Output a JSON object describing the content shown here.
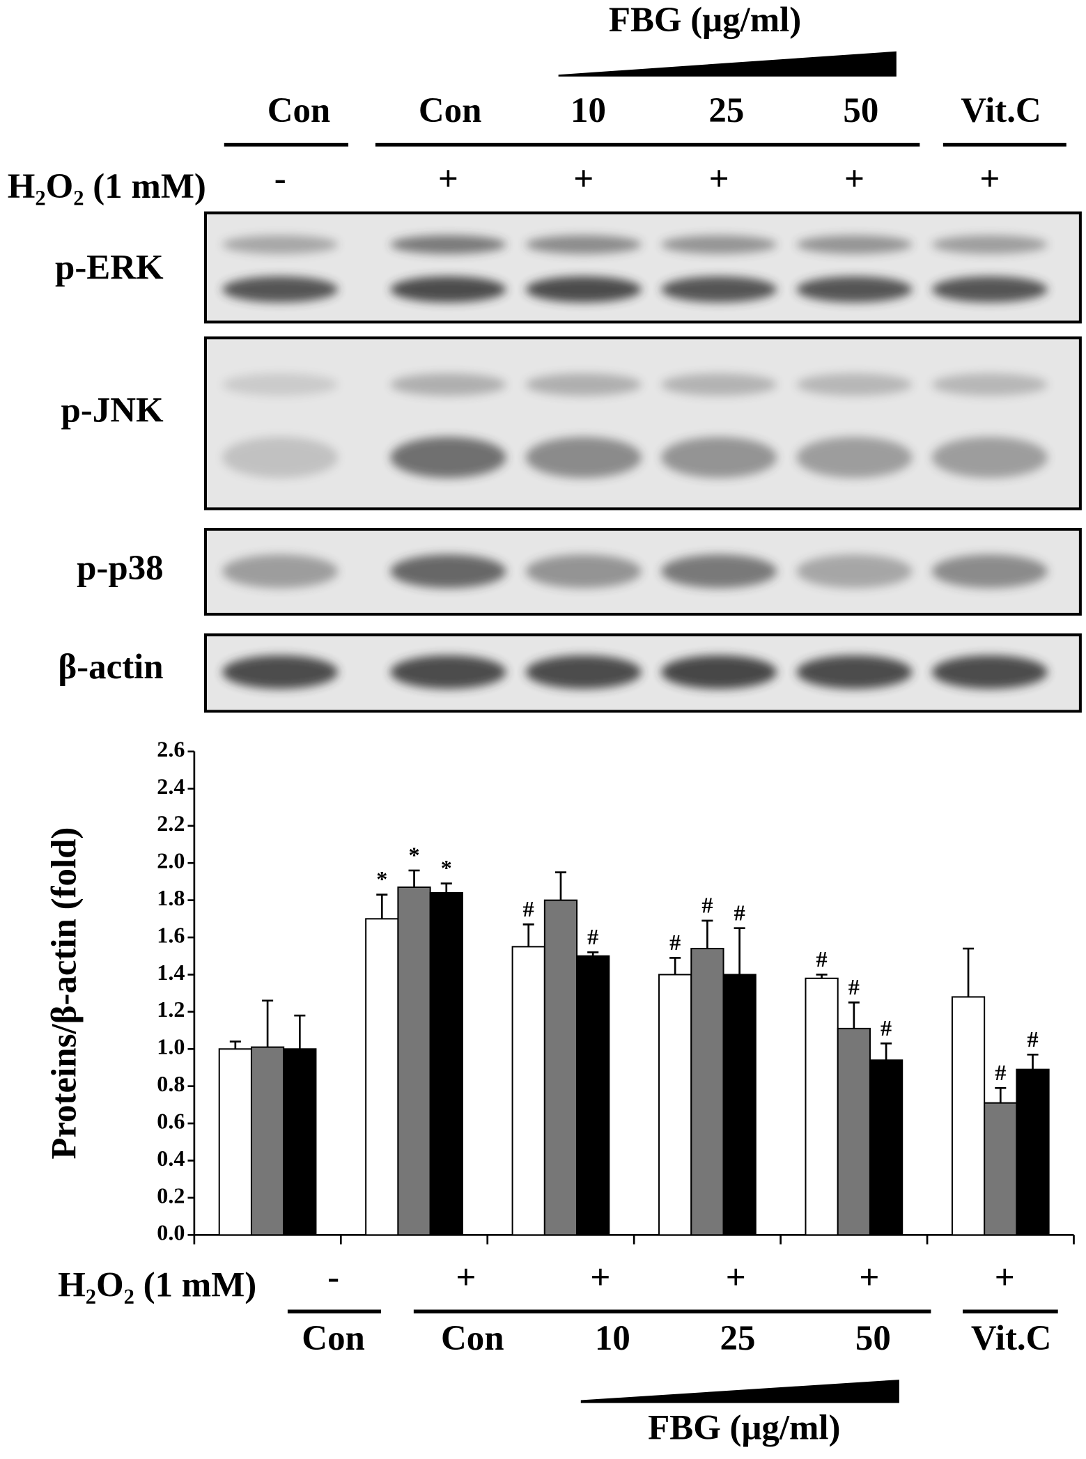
{
  "blot": {
    "fbg_label": "FBG (μg/ml)",
    "lanes": [
      "Con",
      "Con",
      "10",
      "25",
      "50",
      "Vit.C"
    ],
    "h2o2_label": "H₂O₂ (1 mM)",
    "h2o2": [
      "-",
      "+",
      "+",
      "+",
      "+",
      "+"
    ],
    "proteins": [
      "p-ERK",
      "p-JNK",
      "p-p38",
      "β-actin"
    ]
  },
  "chart_data": {
    "type": "bar",
    "y_label": "Proteins/β-actin (fold)",
    "categories": [
      "Con",
      "Con",
      "10",
      "25",
      "50",
      "Vit.C"
    ],
    "h2o2_label": "H₂O₂ (1 mM)",
    "h2o2": [
      "-",
      "+",
      "+",
      "+",
      "+",
      "+"
    ],
    "fbg_label": "FBG (μg/ml)",
    "series": [
      {
        "color": "#ffffff",
        "values": [
          1.0,
          1.7,
          1.55,
          1.4,
          1.38,
          1.28
        ],
        "errors": [
          0.04,
          0.13,
          0.12,
          0.09,
          0.02,
          0.26
        ],
        "markers": [
          null,
          "*",
          "#",
          "#",
          "#",
          null
        ]
      },
      {
        "color": "#777777",
        "values": [
          1.01,
          1.87,
          1.8,
          1.54,
          1.11,
          0.71
        ],
        "errors": [
          0.25,
          0.09,
          0.15,
          0.15,
          0.14,
          0.08
        ],
        "markers": [
          null,
          "*",
          null,
          "#",
          "#",
          "#"
        ]
      },
      {
        "color": "#000000",
        "values": [
          1.0,
          1.84,
          1.5,
          1.4,
          0.94,
          0.89
        ],
        "errors": [
          0.18,
          0.05,
          0.02,
          0.25,
          0.09,
          0.08
        ],
        "markers": [
          null,
          "*",
          "#",
          "#",
          "#",
          "#"
        ]
      }
    ],
    "ylim": [
      0,
      2.6
    ],
    "yticks": [
      {
        "value": 0,
        "label": "0.0"
      },
      {
        "value": 0.2,
        "label": "0.2"
      },
      {
        "value": 0.4,
        "label": "0.4"
      },
      {
        "value": 0.6,
        "label": "0.6"
      },
      {
        "value": 0.8,
        "label": "0.8"
      },
      {
        "value": 1,
        "label": "1.0"
      },
      {
        "value": 1.2,
        "label": "1.2"
      },
      {
        "value": 1.4,
        "label": "1.4"
      },
      {
        "value": 1.6,
        "label": "1.6"
      },
      {
        "value": 1.8,
        "label": "1.8"
      },
      {
        "value": 2,
        "label": "2.0"
      },
      {
        "value": 2.2,
        "label": "2.2"
      },
      {
        "value": 2.4,
        "label": "2.4"
      },
      {
        "value": 2.6,
        "label": "2.6"
      }
    ]
  }
}
